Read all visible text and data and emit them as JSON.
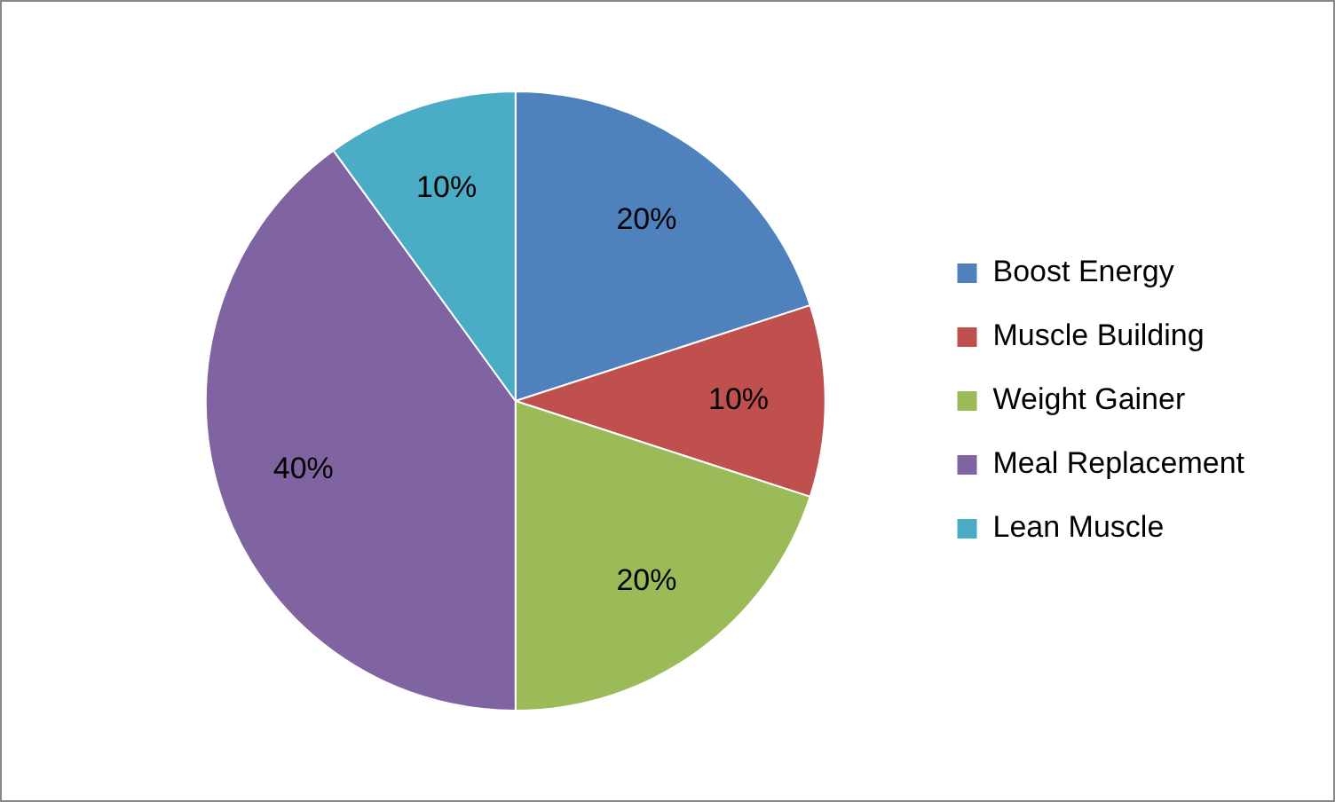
{
  "chart_data": {
    "type": "pie",
    "categories": [
      "Boost Energy",
      "Muscle Building",
      "Weight Gainer",
      "Meal Replacement",
      "Lean Muscle"
    ],
    "values": [
      20,
      10,
      20,
      40,
      10
    ],
    "colors": [
      "#4f81bd",
      "#c0504d",
      "#9bbb59",
      "#8064a2",
      "#4bacc6"
    ],
    "value_labels": [
      "20%",
      "10%",
      "20%",
      "40%",
      "10%"
    ],
    "legend": "right"
  }
}
